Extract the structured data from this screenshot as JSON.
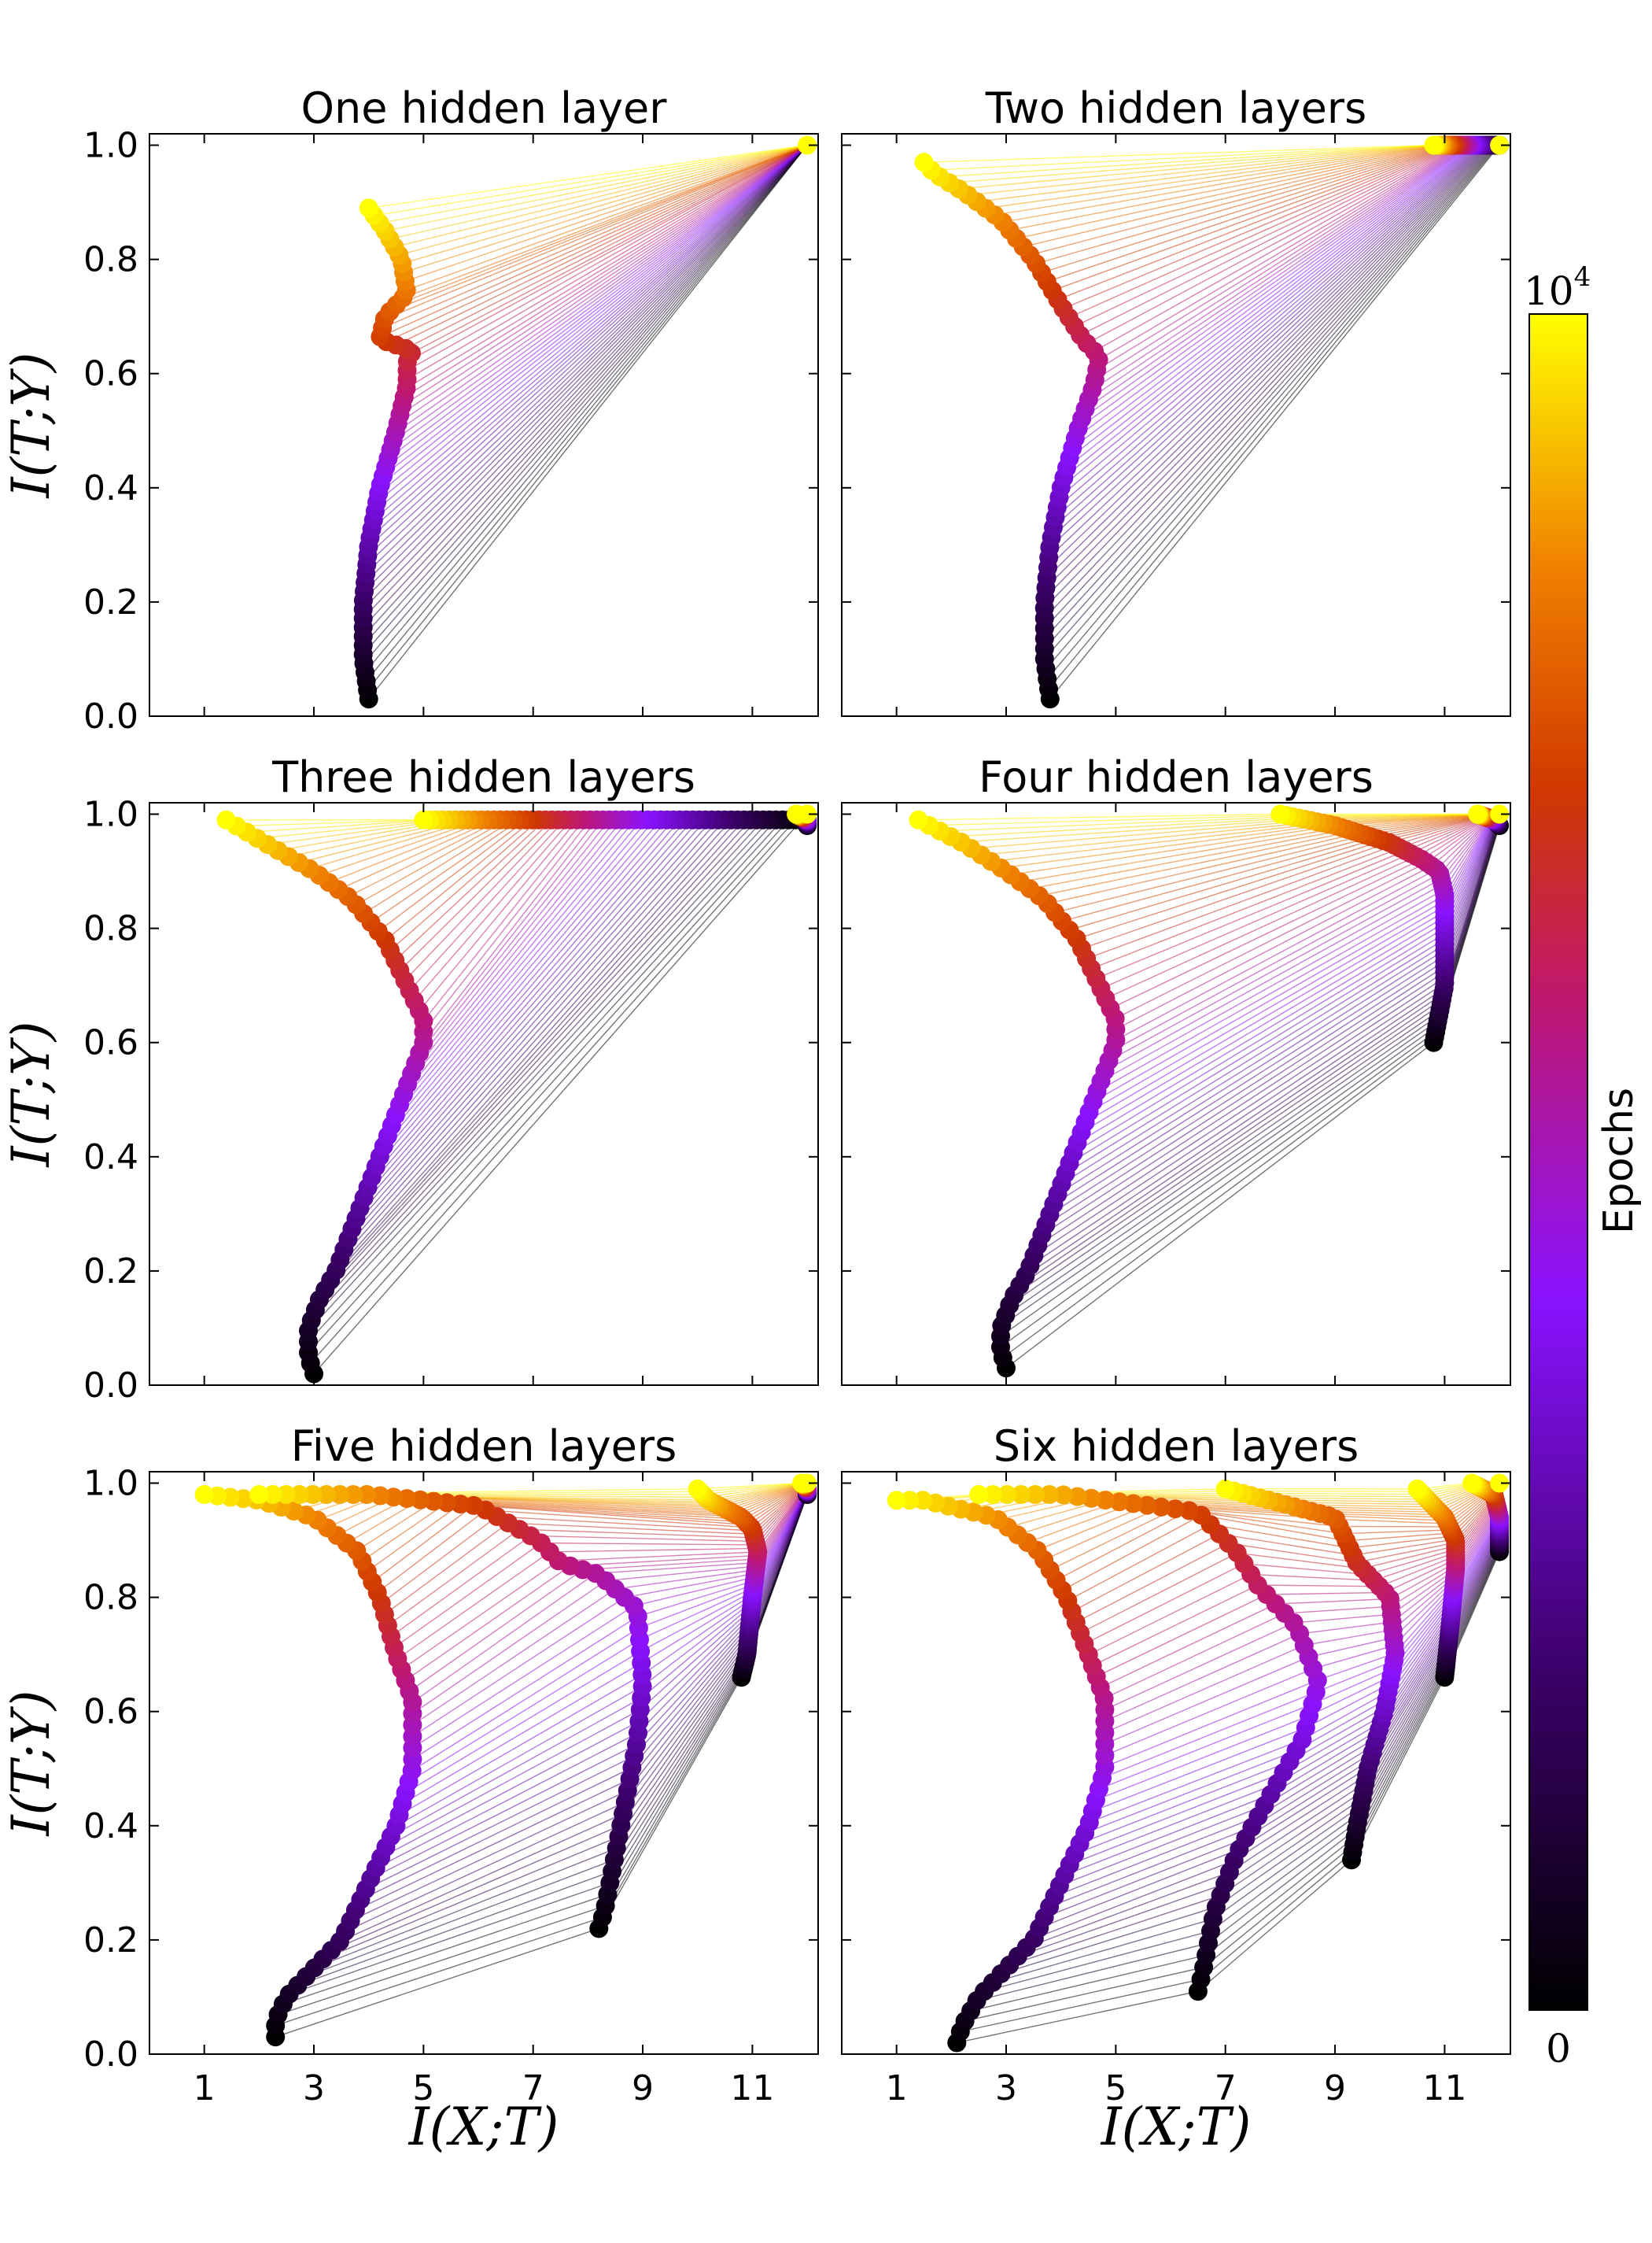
{
  "chart_data": {
    "type": "line",
    "layout": {
      "rows": 3,
      "cols": 2
    },
    "xlabel": "I(X;T)",
    "ylabel": "I(T;Y)",
    "xlim": [
      0,
      12.2
    ],
    "ylim": [
      0,
      1.02
    ],
    "xticks": [
      1,
      3,
      5,
      7,
      9,
      11
    ],
    "yticks": [
      0.0,
      0.2,
      0.4,
      0.6,
      0.8,
      1.0
    ],
    "xtick_labels": [
      "1",
      "3",
      "5",
      "7",
      "9",
      "11"
    ],
    "ytick_labels": [
      "0.0",
      "0.2",
      "0.4",
      "0.6",
      "0.8",
      "1.0"
    ],
    "colorbar": {
      "label": "Epochs",
      "min_label": "0",
      "max_label": "10",
      "max_label_exp": "4",
      "colormap": "gnuplot",
      "colors": [
        "#000000",
        "#5a0090",
        "#8a12ff",
        "#c0186c",
        "#d03800",
        "#f08000",
        "#ffff00"
      ]
    },
    "panels": [
      {
        "title": "One hidden layer",
        "layers": [
          {
            "x": [
              4.0,
              3.9,
              3.9,
              4.0,
              4.2,
              4.5,
              4.7,
              4.7,
              4.8,
              4.2,
              4.3,
              4.7,
              4.6,
              4.3,
              4.0
            ],
            "y": [
              0.03,
              0.1,
              0.2,
              0.3,
              0.4,
              0.5,
              0.58,
              0.62,
              0.64,
              0.66,
              0.7,
              0.74,
              0.8,
              0.85,
              0.89
            ]
          }
        ],
        "endpoint": {
          "x": 12.0,
          "y": 1.0
        }
      },
      {
        "title": "Two hidden layers",
        "layers": [
          {
            "x": [
              3.8,
              3.7,
              3.7,
              3.8,
              4.0,
              4.3,
              4.6,
              4.7,
              4.4,
              4.0,
              3.5,
              2.9,
              2.2,
              1.7,
              1.5
            ],
            "y": [
              0.03,
              0.1,
              0.2,
              0.3,
              0.4,
              0.5,
              0.58,
              0.63,
              0.66,
              0.72,
              0.8,
              0.87,
              0.92,
              0.95,
              0.97
            ]
          },
          {
            "x": [
              12.0,
              11.6,
              11.3,
              11.0,
              10.8
            ],
            "y": [
              1.0,
              1.0,
              1.0,
              1.0,
              1.0
            ]
          }
        ],
        "endpoint": {
          "x": 12.0,
          "y": 1.0
        }
      },
      {
        "title": "Three hidden layers",
        "layers": [
          {
            "x": [
              3.0,
              2.9,
              2.9,
              3.1,
              3.4,
              3.8,
              4.2,
              4.6,
              5.0,
              5.0,
              4.7,
              4.3,
              3.7,
              3.0,
              2.1,
              1.4
            ],
            "y": [
              0.02,
              0.05,
              0.1,
              0.15,
              0.2,
              0.3,
              0.4,
              0.5,
              0.6,
              0.64,
              0.7,
              0.78,
              0.85,
              0.9,
              0.95,
              0.99
            ]
          },
          {
            "x": [
              11.9,
              11.6,
              11.0,
              10.0,
              9.0,
              8.0,
              7.0,
              6.0,
              5.0
            ],
            "y": [
              0.99,
              0.99,
              0.99,
              0.99,
              0.99,
              0.99,
              0.99,
              0.99,
              0.99
            ]
          },
          {
            "x": [
              12.0,
              12.0,
              11.8
            ],
            "y": [
              0.98,
              0.99,
              1.0
            ]
          }
        ],
        "endpoint": {
          "x": 12.0,
          "y": 1.0
        }
      },
      {
        "title": "Four hidden layers",
        "layers": [
          {
            "x": [
              3.0,
              2.9,
              2.9,
              3.1,
              3.4,
              3.8,
              4.2,
              4.6,
              5.0,
              5.0,
              4.7,
              4.3,
              3.7,
              3.0,
              2.2,
              1.4
            ],
            "y": [
              0.03,
              0.06,
              0.1,
              0.15,
              0.2,
              0.3,
              0.4,
              0.5,
              0.6,
              0.64,
              0.7,
              0.78,
              0.85,
              0.9,
              0.95,
              0.99
            ]
          },
          {
            "x": [
              10.8,
              10.9,
              11.0,
              11.0,
              11.0,
              10.9,
              10.6,
              10.0,
              9.0,
              8.0
            ],
            "y": [
              0.6,
              0.65,
              0.7,
              0.78,
              0.86,
              0.9,
              0.92,
              0.95,
              0.98,
              1.0
            ]
          },
          {
            "x": [
              12.0,
              11.9,
              11.6
            ],
            "y": [
              0.98,
              0.99,
              1.0
            ]
          }
        ],
        "endpoint": {
          "x": 12.0,
          "y": 1.0
        }
      },
      {
        "title": "Five hidden layers",
        "layers": [
          {
            "x": [
              2.3,
              2.3,
              2.5,
              3.0,
              3.5,
              4.0,
              4.5,
              4.8,
              4.8,
              4.5,
              4.2,
              3.8,
              3.0,
              2.0,
              1.0
            ],
            "y": [
              0.03,
              0.06,
              0.1,
              0.15,
              0.2,
              0.3,
              0.4,
              0.5,
              0.62,
              0.7,
              0.8,
              0.88,
              0.94,
              0.97,
              0.98
            ]
          },
          {
            "x": [
              8.2,
              8.3,
              8.5,
              8.7,
              8.9,
              9.0,
              8.9,
              8.2,
              7.5,
              7.1,
              6.0,
              4.0,
              2.0
            ],
            "y": [
              0.22,
              0.25,
              0.35,
              0.45,
              0.55,
              0.65,
              0.78,
              0.84,
              0.86,
              0.9,
              0.96,
              0.98,
              0.98
            ]
          },
          {
            "x": [
              10.8,
              10.9,
              11.0,
              11.1,
              11.0,
              10.8,
              10.2,
              10.0
            ],
            "y": [
              0.66,
              0.7,
              0.8,
              0.88,
              0.92,
              0.94,
              0.97,
              0.99
            ]
          },
          {
            "x": [
              12.0,
              12.0,
              11.9
            ],
            "y": [
              0.98,
              0.99,
              1.0
            ]
          }
        ],
        "endpoint": {
          "x": 12.0,
          "y": 1.0
        }
      },
      {
        "title": "Six hidden layers",
        "layers": [
          {
            "x": [
              2.1,
              2.2,
              2.5,
              3.0,
              3.5,
              4.0,
              4.5,
              4.8,
              4.8,
              4.5,
              4.1,
              3.6,
              2.8,
              1.5,
              1.0
            ],
            "y": [
              0.02,
              0.05,
              0.1,
              0.15,
              0.2,
              0.3,
              0.4,
              0.5,
              0.62,
              0.7,
              0.8,
              0.88,
              0.94,
              0.97,
              0.97
            ]
          },
          {
            "x": [
              6.5,
              6.6,
              6.8,
              7.2,
              7.8,
              8.4,
              8.7,
              8.3,
              7.6,
              7.2,
              6.5,
              4.0,
              2.5
            ],
            "y": [
              0.11,
              0.15,
              0.25,
              0.35,
              0.45,
              0.55,
              0.65,
              0.75,
              0.82,
              0.88,
              0.95,
              0.98,
              0.98
            ]
          },
          {
            "x": [
              9.3,
              9.4,
              9.6,
              9.9,
              10.1,
              10.0,
              9.4,
              9.0,
              7.0
            ],
            "y": [
              0.34,
              0.4,
              0.5,
              0.6,
              0.7,
              0.8,
              0.86,
              0.94,
              0.99
            ]
          },
          {
            "x": [
              11.0,
              11.1,
              11.2,
              11.2,
              11.0,
              10.5
            ],
            "y": [
              0.66,
              0.75,
              0.85,
              0.9,
              0.94,
              0.99
            ]
          },
          {
            "x": [
              12.0,
              12.0,
              11.9,
              11.5
            ],
            "y": [
              0.88,
              0.94,
              0.98,
              1.0
            ]
          }
        ],
        "endpoint": {
          "x": 12.0,
          "y": 1.0
        }
      }
    ]
  }
}
